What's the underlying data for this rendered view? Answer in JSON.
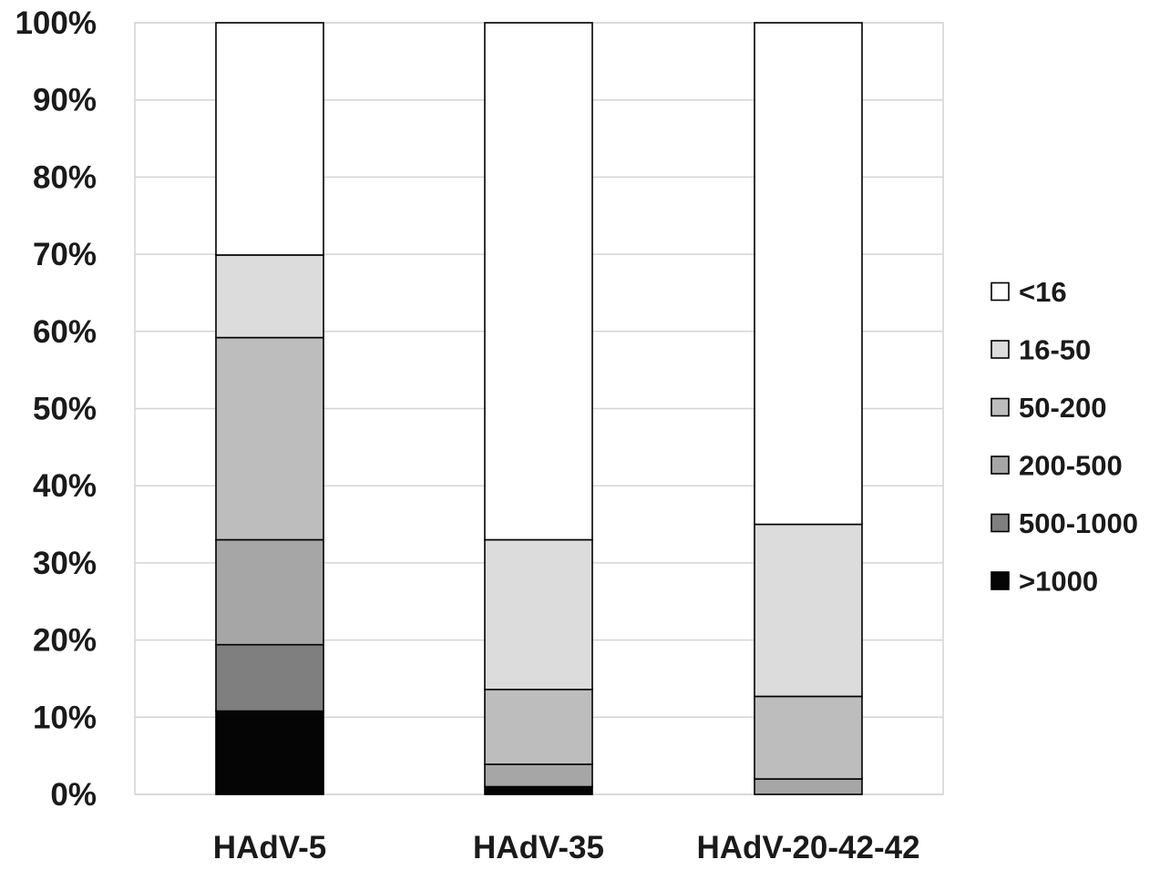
{
  "chart_data": {
    "type": "bar",
    "stacked": true,
    "categories": [
      "HAdV-5",
      "HAdV-35",
      "HAdV-20-42-42"
    ],
    "series": [
      {
        "name": ">1000",
        "values": [
          10.8,
          1.0,
          0.0
        ]
      },
      {
        "name": "500-1000",
        "values": [
          8.6,
          0.0,
          0.0
        ]
      },
      {
        "name": "200-500",
        "values": [
          13.6,
          2.9,
          2.0
        ]
      },
      {
        "name": "50-200",
        "values": [
          26.2,
          9.7,
          10.7
        ]
      },
      {
        "name": "16-50",
        "values": [
          10.7,
          19.4,
          22.3
        ]
      },
      {
        "name": "<16",
        "values": [
          30.1,
          67.0,
          65.0
        ]
      }
    ],
    "ylim": [
      0,
      100
    ],
    "ytick_values": [
      0,
      10,
      20,
      30,
      40,
      50,
      60,
      70,
      80,
      90,
      100
    ],
    "ytick_labels": [
      "0%",
      "10%",
      "20%",
      "30%",
      "40%",
      "50%",
      "60%",
      "70%",
      "80%",
      "90%",
      "100%"
    ],
    "grid": true,
    "legend_position": "right",
    "legend_order": [
      "<16",
      "16-50",
      "50-200",
      "200-500",
      "500-1000",
      ">1000"
    ],
    "colors": {
      "<16": "#ffffff",
      "16-50": "#dcdcdc",
      "50-200": "#bdbdbd",
      "200-500": "#a6a6a6",
      "500-1000": "#7f7f7f",
      ">1000": "#050505"
    }
  }
}
